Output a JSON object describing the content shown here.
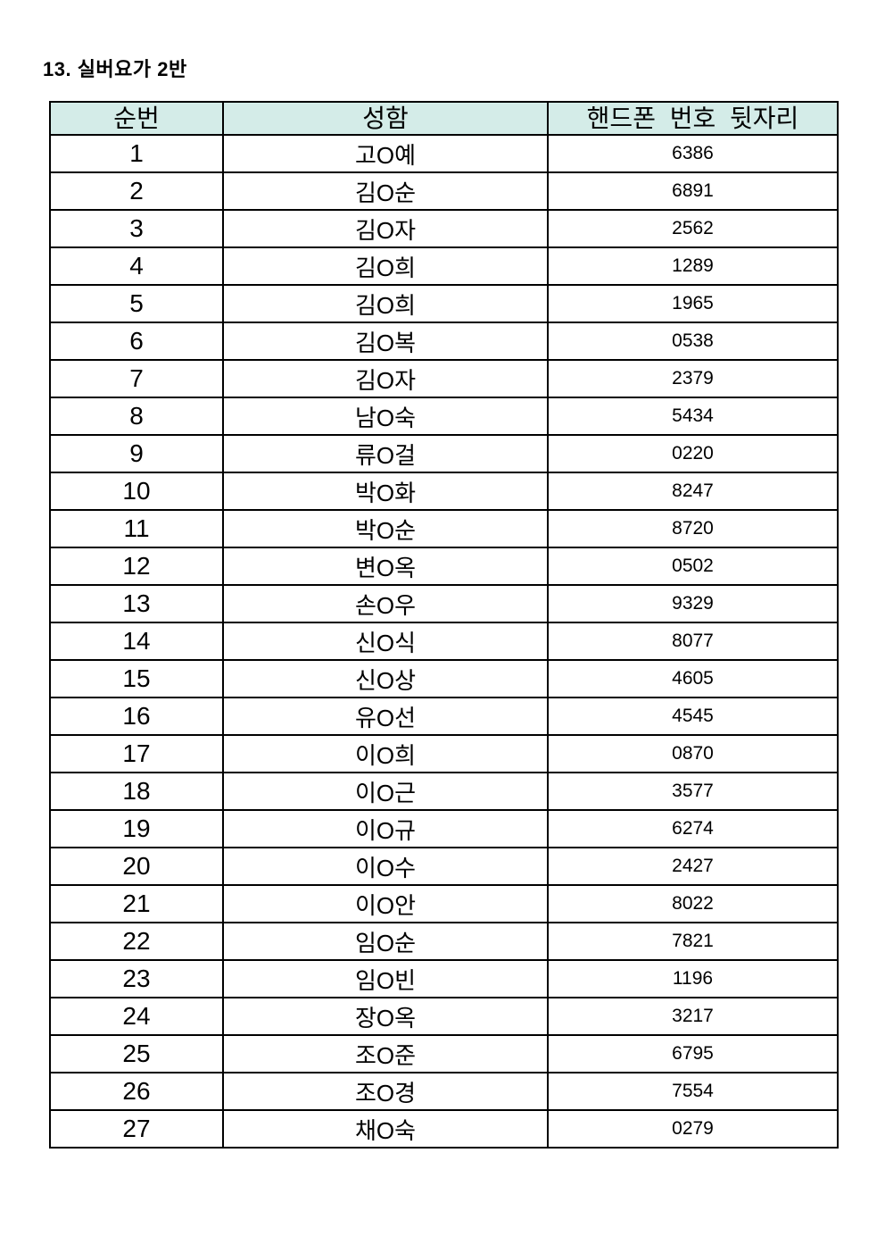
{
  "page": {
    "title": "13. 실버요가 2반"
  },
  "table": {
    "header_bg": "#d4ece8",
    "border_color": "#000000",
    "headers": [
      "순번",
      "성함",
      "핸드폰 번호 뒷자리"
    ],
    "rows": [
      {
        "no": "1",
        "name": "고O예",
        "phone": "6386"
      },
      {
        "no": "2",
        "name": "김O순",
        "phone": "6891"
      },
      {
        "no": "3",
        "name": "김O자",
        "phone": "2562"
      },
      {
        "no": "4",
        "name": "김O희",
        "phone": "1289"
      },
      {
        "no": "5",
        "name": "김O희",
        "phone": "1965"
      },
      {
        "no": "6",
        "name": "김O복",
        "phone": "0538"
      },
      {
        "no": "7",
        "name": "김O자",
        "phone": "2379"
      },
      {
        "no": "8",
        "name": "남O숙",
        "phone": "5434"
      },
      {
        "no": "9",
        "name": "류O걸",
        "phone": "0220"
      },
      {
        "no": "10",
        "name": "박O화",
        "phone": "8247"
      },
      {
        "no": "11",
        "name": "박O순",
        "phone": "8720"
      },
      {
        "no": "12",
        "name": "변O옥",
        "phone": "0502"
      },
      {
        "no": "13",
        "name": "손O우",
        "phone": "9329"
      },
      {
        "no": "14",
        "name": "신O식",
        "phone": "8077"
      },
      {
        "no": "15",
        "name": "신O상",
        "phone": "4605"
      },
      {
        "no": "16",
        "name": "유O선",
        "phone": "4545"
      },
      {
        "no": "17",
        "name": "이O희",
        "phone": "0870"
      },
      {
        "no": "18",
        "name": "이O근",
        "phone": "3577"
      },
      {
        "no": "19",
        "name": "이O규",
        "phone": "6274"
      },
      {
        "no": "20",
        "name": "이O수",
        "phone": "2427"
      },
      {
        "no": "21",
        "name": "이O안",
        "phone": "8022"
      },
      {
        "no": "22",
        "name": "임O순",
        "phone": "7821"
      },
      {
        "no": "23",
        "name": "임O빈",
        "phone": "1196"
      },
      {
        "no": "24",
        "name": "장O옥",
        "phone": "3217"
      },
      {
        "no": "25",
        "name": "조O준",
        "phone": "6795"
      },
      {
        "no": "26",
        "name": "조O경",
        "phone": "7554"
      },
      {
        "no": "27",
        "name": "채O숙",
        "phone": "0279"
      }
    ]
  }
}
